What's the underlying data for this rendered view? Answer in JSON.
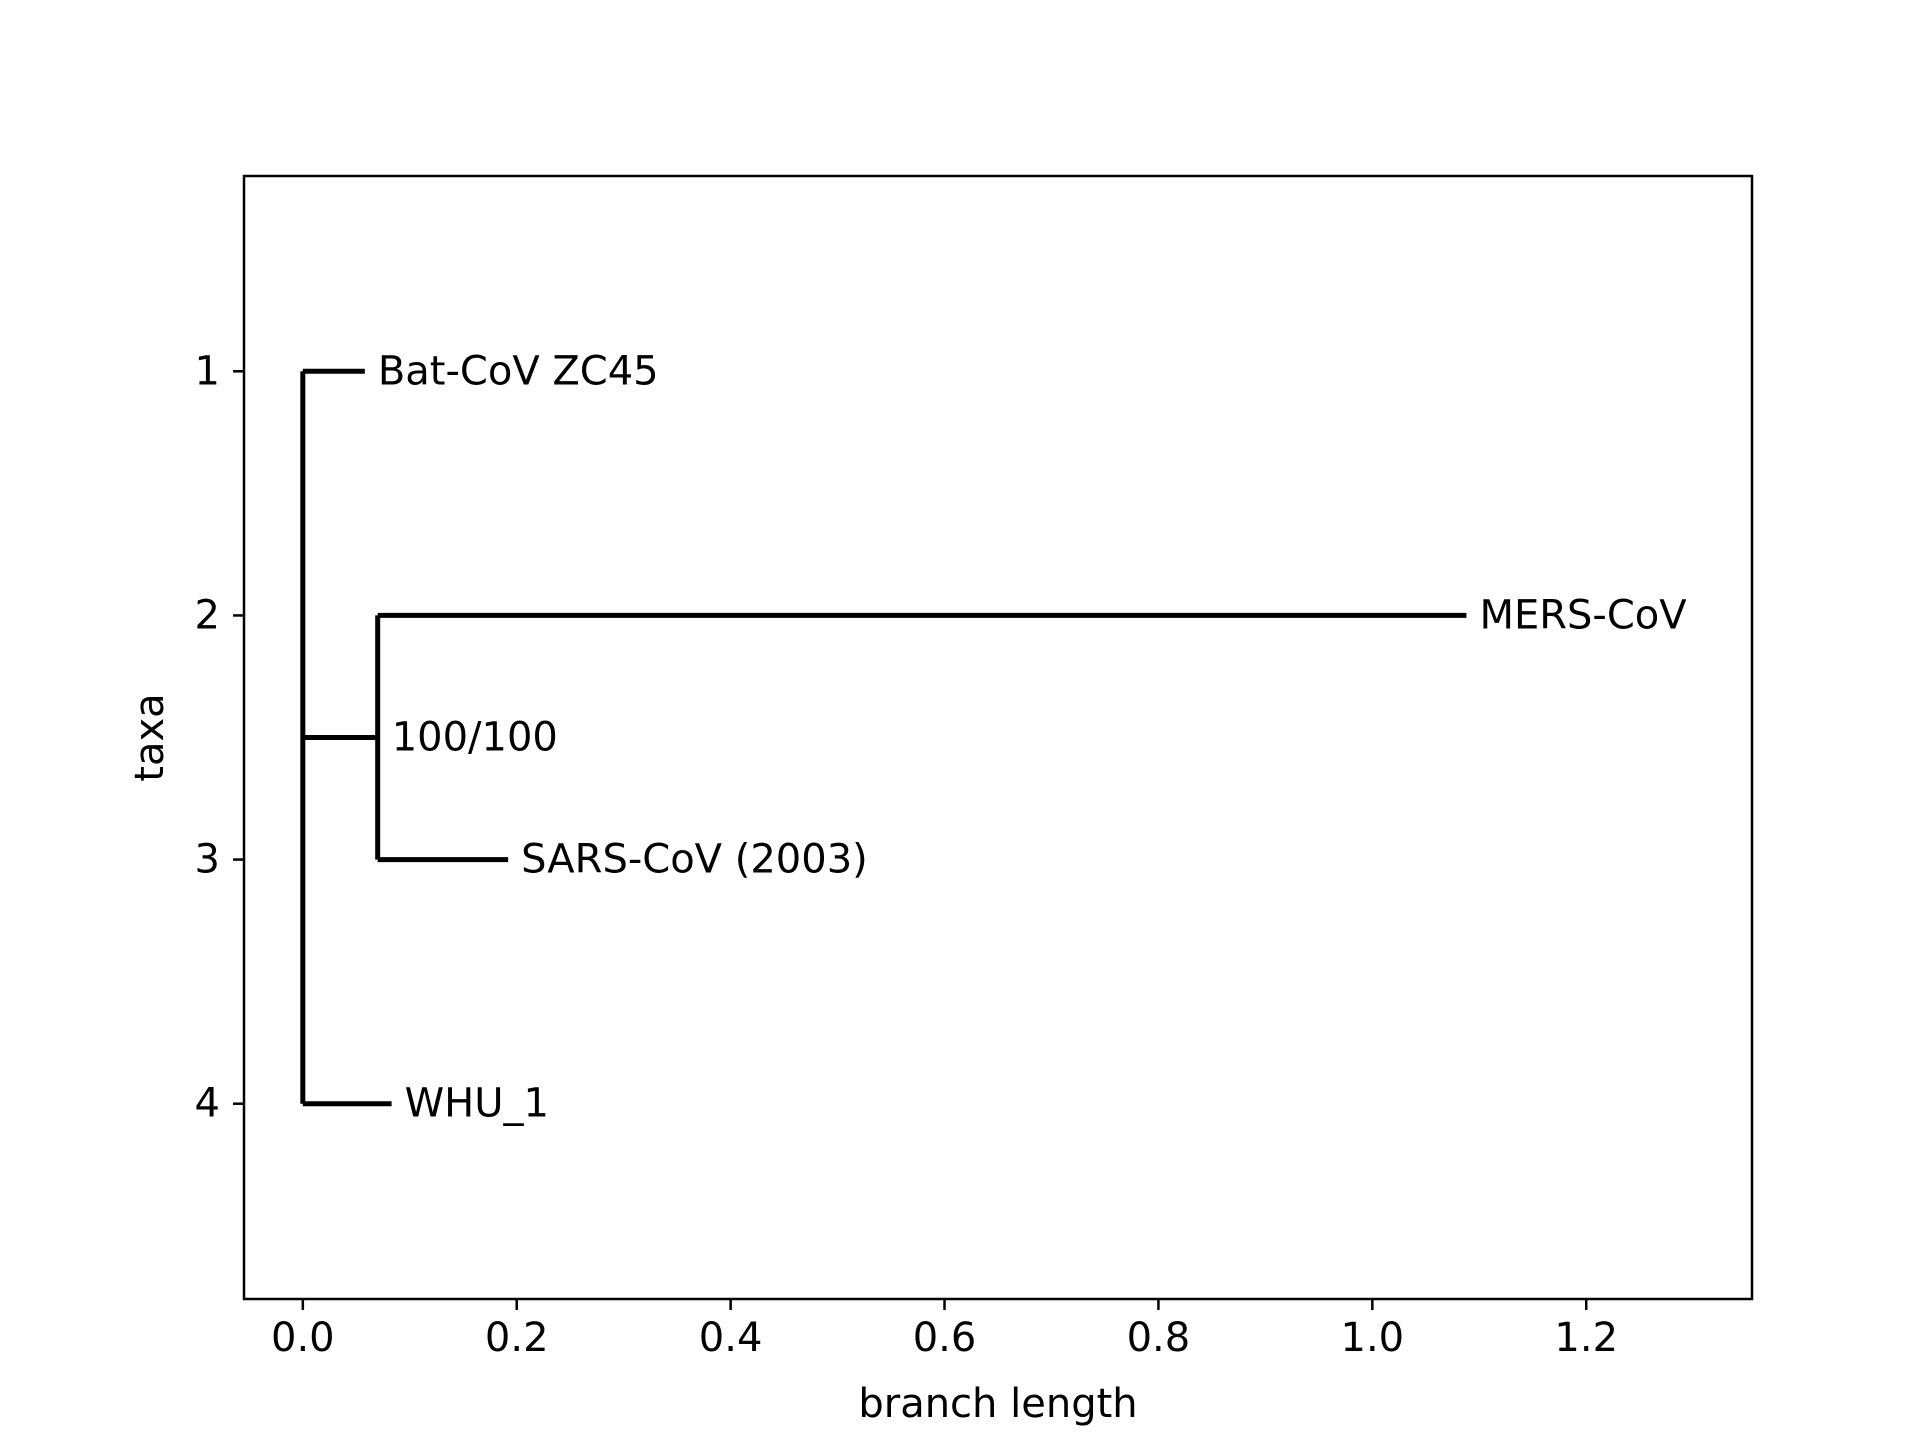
{
  "chart_data": {
    "type": "phylogenetic_tree",
    "xlabel": "branch length",
    "ylabel": "taxa",
    "xlim": [
      -0.055,
      1.355
    ],
    "ylim": [
      4.8,
      0.2
    ],
    "xticks": [
      0.0,
      0.2,
      0.4,
      0.6,
      0.8,
      1.0,
      1.2
    ],
    "xtick_labels": [
      "0.0",
      "0.2",
      "0.4",
      "0.6",
      "0.8",
      "1.0",
      "1.2"
    ],
    "yticks": [
      1,
      2,
      3,
      4
    ],
    "ytick_labels": [
      "1",
      "2",
      "3",
      "4"
    ],
    "grid": false,
    "line_color": "#000000",
    "root": {
      "x": 0.0,
      "y_range": [
        1,
        4
      ]
    },
    "clade": {
      "x": 0.07,
      "y": 2.5,
      "y_range": [
        2,
        3
      ],
      "support": "100/100"
    },
    "leaves": [
      {
        "name": "Bat-CoV ZC45",
        "y": 1,
        "x_start": 0.0,
        "x_end": 0.058
      },
      {
        "name": "MERS-CoV",
        "y": 2,
        "x_start": 0.07,
        "x_end": 1.088
      },
      {
        "name": "SARS-CoV (2003)",
        "y": 3,
        "x_start": 0.07,
        "x_end": 0.192
      },
      {
        "name": "WHU_1",
        "y": 4,
        "x_start": 0.0,
        "x_end": 0.083
      }
    ]
  }
}
